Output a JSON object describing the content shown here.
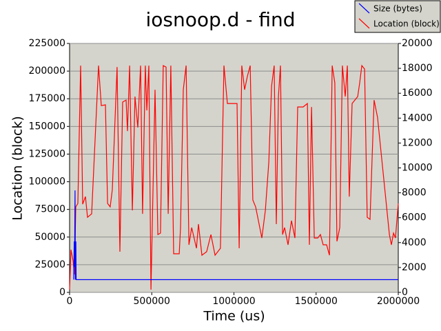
{
  "chart_data": {
    "type": "line",
    "title": "iosnoop.d - find",
    "xlabel": "Time (us)",
    "ylabel": "Location (block)",
    "xlim": [
      0,
      2000000
    ],
    "xticks": [
      0,
      500000,
      1000000,
      1500000,
      2000000
    ],
    "ylim": [
      0,
      225000
    ],
    "yticks": [
      0,
      25000,
      50000,
      75000,
      100000,
      125000,
      150000,
      175000,
      200000,
      225000
    ],
    "y2lim": [
      0,
      20000
    ],
    "y2ticks": [
      0,
      2000,
      4000,
      6000,
      8000,
      10000,
      12000,
      14000,
      16000,
      18000,
      20000
    ],
    "grid": true,
    "legend": "upper right",
    "series": [
      {
        "name": "Size (bytes)",
        "color": "#0000ff",
        "axis": "y2",
        "x": [
          25000,
          28000,
          30000,
          33000,
          35000,
          38000,
          40000,
          2000000
        ],
        "values": [
          1024,
          4096,
          2048,
          8192,
          1024,
          4096,
          1024,
          1024
        ]
      },
      {
        "name": "Location (block)",
        "color": "#ff0000",
        "x": [
          0,
          8400,
          21000,
          29400,
          37700,
          50300,
          67100,
          79700,
          96400,
          109000,
          134000,
          176000,
          193000,
          218000,
          231000,
          247000,
          260000,
          289000,
          306000,
          323000,
          344000,
          352000,
          365000,
          382000,
          398000,
          415000,
          432000,
          444000,
          461000,
          470000,
          482000,
          495000,
          520000,
          537000,
          553000,
          570000,
          587000,
          600000,
          616000,
          633000,
          667000,
          675000,
          692000,
          709000,
          726000,
          743000,
          772000,
          784000,
          805000,
          834000,
          860000,
          885000,
          918000,
          939000,
          960000,
          985000,
          1019000,
          1032000,
          1048000,
          1065000,
          1082000,
          1099000,
          1115000,
          1132000,
          1149000,
          1170000,
          1191000,
          1212000,
          1229000,
          1245000,
          1258000,
          1271000,
          1283000,
          1296000,
          1308000,
          1329000,
          1350000,
          1371000,
          1388000,
          1421000,
          1447000,
          1459000,
          1472000,
          1489000,
          1510000,
          1526000,
          1543000,
          1564000,
          1581000,
          1598000,
          1614000,
          1627000,
          1644000,
          1660000,
          1677000,
          1690000,
          1702000,
          1719000,
          1736000,
          1753000,
          1765000,
          1778000,
          1795000,
          1811000,
          1828000,
          1853000,
          1874000,
          1946000,
          1958000,
          1971000,
          1983000,
          2000000
        ],
        "values": [
          2500,
          38600,
          28700,
          16200,
          77300,
          80400,
          205000,
          79700,
          86600,
          67900,
          71000,
          205000,
          168800,
          169500,
          80400,
          77300,
          92800,
          203700,
          36800,
          172000,
          173800,
          145800,
          205000,
          74100,
          177000,
          149000,
          205000,
          71000,
          205000,
          164500,
          205000,
          2500,
          183200,
          52300,
          53600,
          205000,
          203700,
          71000,
          205000,
          34900,
          34900,
          58600,
          183200,
          205000,
          43000,
          58600,
          39900,
          61700,
          33600,
          36800,
          52300,
          33600,
          39900,
          205000,
          170700,
          170700,
          170700,
          39900,
          205000,
          183200,
          195600,
          205000,
          83500,
          77300,
          64800,
          49200,
          74100,
          117700,
          186300,
          205000,
          61700,
          177000,
          205000,
          52300,
          58600,
          43000,
          64800,
          49200,
          167600,
          167600,
          170700,
          43000,
          167600,
          49200,
          49200,
          52300,
          43000,
          43000,
          33600,
          205000,
          189400,
          46100,
          58600,
          205000,
          177000,
          205000,
          86600,
          170700,
          173800,
          177000,
          189400,
          205000,
          201900,
          67900,
          66000,
          173800,
          158200,
          52300,
          43000,
          53600,
          49200,
          80400
        ]
      }
    ]
  }
}
